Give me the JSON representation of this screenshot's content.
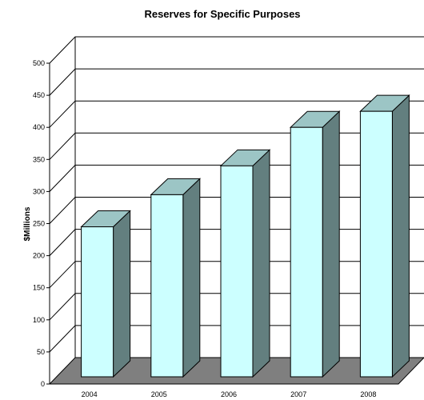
{
  "chart_data": {
    "type": "bar",
    "title": "Reserves for Specific Purposes",
    "xlabel": "",
    "ylabel": "$Millions",
    "categories": [
      "2004",
      "2005",
      "2006",
      "2007",
      "2008"
    ],
    "values": [
      245,
      295,
      340,
      400,
      425
    ],
    "ylim": [
      0,
      500
    ],
    "yticks": [
      0,
      50,
      100,
      150,
      200,
      250,
      300,
      350,
      400,
      450,
      500
    ],
    "grid": true,
    "three_d": true,
    "colors": {
      "bar_front": "#ccffff",
      "bar_top": "#9cc5c5",
      "bar_side": "#637f7f",
      "floor": "#7f7f7f",
      "outline": "#000000"
    }
  }
}
